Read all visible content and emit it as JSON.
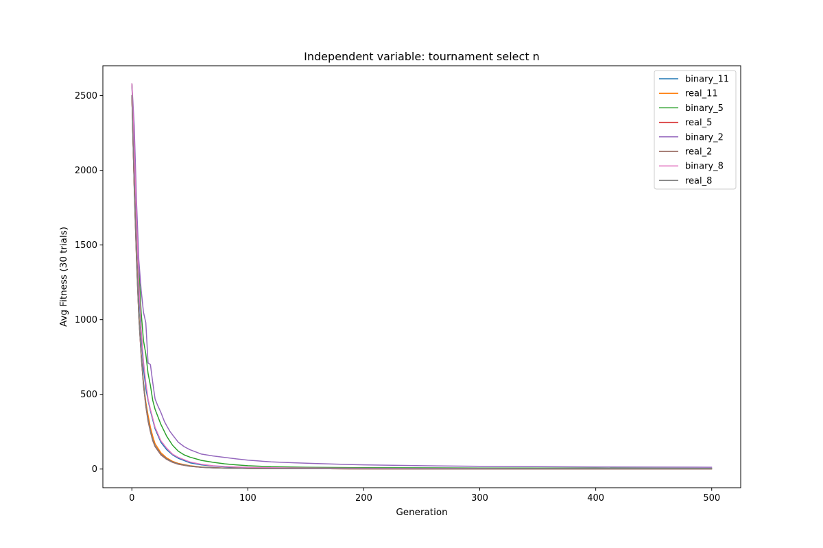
{
  "chart_data": {
    "type": "line",
    "title": "Independent variable: tournament select n",
    "xlabel": "Generation",
    "ylabel": "Avg Fitness (30 trials)",
    "xlim": [
      -25,
      525
    ],
    "ylim": [
      -125,
      2700
    ],
    "xticks": [
      0,
      100,
      200,
      300,
      400,
      500
    ],
    "yticks": [
      0,
      500,
      1000,
      1500,
      2000,
      2500
    ],
    "grid": false,
    "legend_position": "top-right",
    "series": [
      {
        "name": "binary_11",
        "color": "#1f77b4",
        "x": [
          0,
          2,
          4,
          6,
          8,
          10,
          12,
          14,
          16,
          18,
          20,
          25,
          30,
          35,
          40,
          50,
          60,
          70,
          80,
          100,
          130,
          170,
          250,
          350,
          500
        ],
        "y": [
          2580,
          2100,
          1640,
          1200,
          900,
          680,
          540,
          460,
          390,
          330,
          270,
          180,
          130,
          95,
          72,
          42,
          28,
          20,
          15,
          10,
          7,
          5,
          4,
          3,
          2
        ]
      },
      {
        "name": "real_11",
        "color": "#ff7f0e",
        "x": [
          0,
          2,
          4,
          6,
          8,
          10,
          12,
          14,
          16,
          18,
          20,
          25,
          30,
          35,
          40,
          50,
          60,
          70,
          80,
          100,
          130,
          170,
          250,
          350,
          500
        ],
        "y": [
          2500,
          1900,
          1450,
          1050,
          780,
          580,
          450,
          360,
          280,
          220,
          170,
          110,
          75,
          52,
          38,
          22,
          14,
          10,
          7,
          5,
          3,
          2,
          1,
          1,
          1
        ]
      },
      {
        "name": "binary_5",
        "color": "#2ca02c",
        "x": [
          0,
          2,
          4,
          6,
          8,
          10,
          12,
          14,
          16,
          18,
          20,
          25,
          30,
          35,
          40,
          45,
          50,
          60,
          70,
          80,
          90,
          100,
          120,
          150,
          200,
          300,
          400,
          500
        ],
        "y": [
          2580,
          2200,
          1750,
          1350,
          1050,
          860,
          770,
          640,
          560,
          460,
          400,
          300,
          220,
          160,
          120,
          95,
          80,
          58,
          45,
          35,
          28,
          22,
          16,
          12,
          9,
          7,
          6,
          5
        ]
      },
      {
        "name": "real_5",
        "color": "#d62728",
        "x": [
          0,
          2,
          4,
          6,
          8,
          10,
          12,
          14,
          16,
          18,
          20,
          25,
          30,
          35,
          40,
          50,
          60,
          70,
          80,
          100,
          130,
          170,
          250,
          350,
          500
        ],
        "y": [
          2500,
          1880,
          1400,
          1020,
          760,
          560,
          420,
          320,
          250,
          190,
          150,
          95,
          65,
          45,
          32,
          18,
          11,
          8,
          6,
          4,
          3,
          2,
          1,
          1,
          1
        ]
      },
      {
        "name": "binary_2",
        "color": "#9467bd",
        "x": [
          0,
          2,
          4,
          6,
          8,
          10,
          12,
          14,
          16,
          18,
          20,
          22,
          25,
          28,
          30,
          33,
          36,
          40,
          45,
          50,
          55,
          60,
          70,
          80,
          90,
          100,
          110,
          120,
          140,
          160,
          180,
          200,
          250,
          300,
          350,
          400,
          450,
          500
        ],
        "y": [
          2580,
          2300,
          1800,
          1400,
          1200,
          1050,
          980,
          710,
          700,
          580,
          470,
          430,
          380,
          320,
          290,
          250,
          220,
          180,
          150,
          130,
          115,
          100,
          88,
          78,
          68,
          60,
          54,
          48,
          42,
          37,
          32,
          28,
          22,
          18,
          16,
          14,
          13,
          12
        ]
      },
      {
        "name": "real_2",
        "color": "#8c564b",
        "x": [
          0,
          2,
          4,
          6,
          8,
          10,
          12,
          14,
          16,
          18,
          20,
          25,
          30,
          35,
          40,
          50,
          60,
          70,
          80,
          100,
          130,
          170,
          250,
          350,
          500
        ],
        "y": [
          2500,
          1900,
          1420,
          1030,
          770,
          570,
          430,
          330,
          255,
          195,
          155,
          100,
          68,
          48,
          34,
          20,
          12,
          9,
          6,
          4,
          3,
          2,
          1,
          1,
          1
        ]
      },
      {
        "name": "binary_8",
        "color": "#e377c2",
        "x": [
          0,
          2,
          4,
          6,
          8,
          10,
          12,
          14,
          16,
          18,
          20,
          25,
          30,
          35,
          40,
          50,
          60,
          70,
          80,
          100,
          130,
          170,
          250,
          350,
          500
        ],
        "y": [
          2580,
          2150,
          1680,
          1250,
          940,
          720,
          580,
          470,
          400,
          340,
          280,
          190,
          140,
          100,
          78,
          48,
          32,
          22,
          17,
          11,
          8,
          6,
          4,
          3,
          3
        ]
      },
      {
        "name": "real_8",
        "color": "#7f7f7f",
        "x": [
          0,
          2,
          4,
          6,
          8,
          10,
          12,
          14,
          16,
          18,
          20,
          25,
          30,
          35,
          40,
          50,
          60,
          70,
          80,
          100,
          130,
          170,
          250,
          350,
          500
        ],
        "y": [
          2500,
          1890,
          1410,
          1025,
          765,
          565,
          425,
          325,
          252,
          192,
          152,
          98,
          66,
          46,
          33,
          19,
          12,
          8,
          6,
          4,
          3,
          2,
          1,
          1,
          1
        ]
      }
    ]
  }
}
